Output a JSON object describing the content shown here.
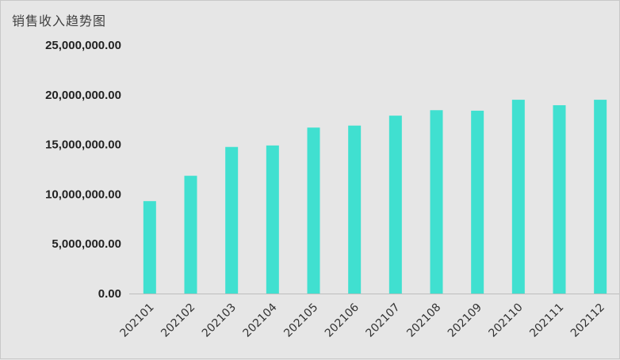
{
  "chart_data": {
    "type": "bar",
    "title": "销售收入趋势图",
    "categories": [
      "202101",
      "202102",
      "202103",
      "202104",
      "202105",
      "202106",
      "202107",
      "202108",
      "202109",
      "202110",
      "202111",
      "202112"
    ],
    "values": [
      9300000,
      11850000,
      14750000,
      14900000,
      16700000,
      16900000,
      17900000,
      18450000,
      18400000,
      19500000,
      18950000,
      19500000
    ],
    "ylim": [
      0,
      25000000
    ],
    "yticks": [
      0,
      5000000,
      10000000,
      15000000,
      20000000,
      25000000
    ],
    "ytick_labels": [
      "0.00",
      "5,000,000.00",
      "10,000,000.00",
      "15,000,000.00",
      "20,000,000.00",
      "25,000,000.00"
    ],
    "xlabel": "",
    "ylabel": "",
    "grid": false,
    "bar_color": "#40e0d0",
    "background_color": "#e6e6e6"
  }
}
